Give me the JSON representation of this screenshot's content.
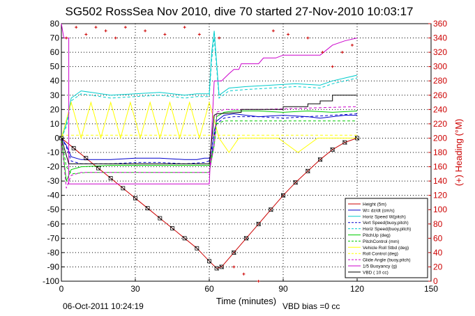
{
  "chart_data": {
    "type": "line",
    "title": "SG502 RossSea Nov 2010, dive 70 started 27-Nov-2010 10:03:17",
    "xlabel": "Time (minutes)",
    "ylabel_right": "(+) Heading (°M)",
    "xlim": [
      0,
      150
    ],
    "ylim": [
      -100,
      80
    ],
    "ylim_right": [
      0,
      360
    ],
    "x_ticks": [
      0,
      30,
      60,
      90,
      120,
      150
    ],
    "y_ticks": [
      -100,
      -90,
      -80,
      -70,
      -60,
      -50,
      -40,
      -30,
      -20,
      -10,
      0,
      10,
      20,
      30,
      40,
      50,
      60,
      70,
      80
    ],
    "y_ticks_right": [
      0,
      20,
      40,
      60,
      80,
      100,
      120,
      140,
      160,
      180,
      200,
      220,
      240,
      260,
      280,
      300,
      320,
      340,
      360
    ],
    "grid": true,
    "legend_position": "bottom-right",
    "footer_left": "06-Oct-2011 10:24:19",
    "footer_right": "VBD bias =0 cc",
    "series": [
      {
        "name": "Height (5m)",
        "color": "#cc0000",
        "style": "solid",
        "x": [
          0,
          5,
          10,
          15,
          20,
          25,
          30,
          35,
          40,
          45,
          50,
          55,
          60,
          63,
          65,
          70,
          75,
          80,
          85,
          90,
          95,
          100,
          105,
          110,
          115,
          120
        ],
        "y": [
          0,
          -7,
          -14,
          -21,
          -28,
          -35,
          -42,
          -49,
          -56,
          -63,
          -70,
          -77,
          -86,
          -91,
          -90,
          -80,
          -70,
          -60,
          -50,
          -40,
          -31,
          -23,
          -15,
          -8,
          -3,
          0
        ]
      },
      {
        "name": "W= dz/dt (cm/s)",
        "color": "#0000cc",
        "style": "solid",
        "x": [
          0,
          2,
          4,
          8,
          20,
          30,
          40,
          50,
          55,
          58,
          60,
          61,
          62,
          63,
          66,
          70,
          75,
          80,
          90,
          100,
          105,
          110,
          115,
          120
        ],
        "y": [
          0,
          -5,
          -13,
          -15,
          -15,
          -14,
          -14,
          -15,
          -15,
          -14,
          -14,
          -12,
          5,
          12,
          16,
          17,
          16,
          15,
          16,
          15,
          14,
          15,
          16,
          16
        ]
      },
      {
        "name": "Horiz Speed W(pitch)",
        "color": "#00cccc",
        "style": "solid",
        "x": [
          0,
          2,
          4,
          8,
          20,
          30,
          40,
          50,
          55,
          60,
          61,
          62,
          64,
          68,
          75,
          85,
          95,
          105,
          110,
          115,
          120
        ],
        "y": [
          0,
          10,
          28,
          33,
          30,
          31,
          32,
          30,
          31,
          31,
          60,
          75,
          30,
          35,
          36,
          37,
          38,
          37,
          40,
          42,
          44
        ]
      },
      {
        "name": "Vert Speed(buoy,pitch)",
        "color": "#0000cc",
        "style": "dashed",
        "x": [
          0,
          2,
          4,
          8,
          20,
          30,
          40,
          50,
          58,
          60,
          62,
          63,
          66,
          70,
          80,
          90,
          100,
          110,
          120
        ],
        "y": [
          0,
          -6,
          -16,
          -18,
          -18,
          -17,
          -17,
          -18,
          -17,
          -16,
          2,
          10,
          14,
          15,
          15,
          14,
          15,
          16,
          17
        ]
      },
      {
        "name": "Horiz Speed(buoy,pitch)",
        "color": "#00cccc",
        "style": "dashed",
        "x": [
          0,
          2,
          4,
          8,
          20,
          30,
          40,
          50,
          55,
          60,
          61,
          62,
          64,
          68,
          75,
          85,
          95,
          105,
          110,
          115,
          120
        ],
        "y": [
          0,
          8,
          26,
          31,
          28,
          29,
          30,
          28,
          29,
          29,
          55,
          70,
          28,
          33,
          34,
          35,
          36,
          35,
          38,
          40,
          42
        ]
      },
      {
        "name": "PitchUp (deg)",
        "color": "#00cc00",
        "style": "solid",
        "x": [
          0,
          2,
          4,
          8,
          20,
          30,
          40,
          50,
          60,
          62,
          63,
          66,
          70,
          80,
          90,
          100,
          110,
          120
        ],
        "y": [
          0,
          -30,
          -22,
          -20,
          -19,
          -19,
          -19,
          -19,
          -19,
          -5,
          15,
          18,
          19,
          19,
          18,
          19,
          18,
          19
        ]
      },
      {
        "name": "PitchControl (mm)",
        "color": "#00cc00",
        "style": "dashed",
        "x": [
          0,
          2,
          4,
          10,
          20,
          40,
          60,
          62,
          63,
          66,
          80,
          100,
          120
        ],
        "y": [
          0,
          -20,
          -25,
          -24,
          -24,
          -24,
          -24,
          -5,
          10,
          12,
          12,
          12,
          12
        ]
      },
      {
        "name": "Vehicle Roll Stbd (deg)",
        "color": "#ffff00",
        "style": "solid",
        "x": [
          0,
          4,
          8,
          12,
          16,
          20,
          24,
          28,
          32,
          36,
          40,
          44,
          48,
          52,
          56,
          60,
          64,
          68,
          72,
          80,
          88,
          96,
          104,
          112,
          120
        ],
        "y": [
          0,
          25,
          0,
          25,
          0,
          25,
          0,
          25,
          0,
          25,
          0,
          25,
          0,
          25,
          0,
          25,
          0,
          -10,
          0,
          0,
          0,
          -10,
          0,
          0,
          0
        ]
      },
      {
        "name": "Roll Control (deg)",
        "color": "#ffff00",
        "style": "dashed",
        "x": [
          0,
          10,
          20,
          30,
          40,
          50,
          60,
          62,
          70,
          80,
          90,
          100,
          110,
          120
        ],
        "y": [
          2,
          2,
          2,
          2,
          2,
          2,
          2,
          2,
          2,
          2,
          2,
          2,
          2,
          2
        ]
      },
      {
        "name": "Glide Angle (buoy,pitch)",
        "color": "#cc00cc",
        "style": "dashed",
        "x": [
          0,
          2,
          4,
          8,
          20,
          40,
          60,
          62,
          63,
          66,
          80,
          100,
          120
        ],
        "y": [
          0,
          -35,
          -26,
          -24,
          -24,
          -24,
          -24,
          -5,
          18,
          20,
          20,
          21,
          22
        ]
      },
      {
        "name": "1/5 Buoyancy (g)",
        "color": "#cc00cc",
        "style": "solid",
        "x": [
          0,
          1,
          2,
          3,
          3.01,
          60,
          60.01,
          62,
          65,
          68,
          70,
          72,
          73,
          80,
          82,
          87,
          90,
          100,
          105,
          110,
          115,
          120
        ],
        "y": [
          80,
          70,
          70,
          70,
          -32,
          -32,
          -32,
          40,
          40,
          45,
          48,
          48,
          52,
          52,
          56,
          56,
          58,
          58,
          58,
          65,
          68,
          70
        ]
      },
      {
        "name": "VBD ( 10 cc)",
        "color": "#000000",
        "style": "solid",
        "x": [
          0,
          3,
          3.01,
          60,
          62,
          63,
          73,
          73.01,
          90,
          90.01,
          100,
          100.01,
          105,
          105.01,
          110,
          110.01,
          120
        ],
        "y": [
          0,
          -18,
          -18,
          -18,
          16,
          17,
          18,
          20,
          20,
          22,
          22,
          24,
          24,
          26,
          26,
          30,
          30
        ]
      }
    ]
  }
}
